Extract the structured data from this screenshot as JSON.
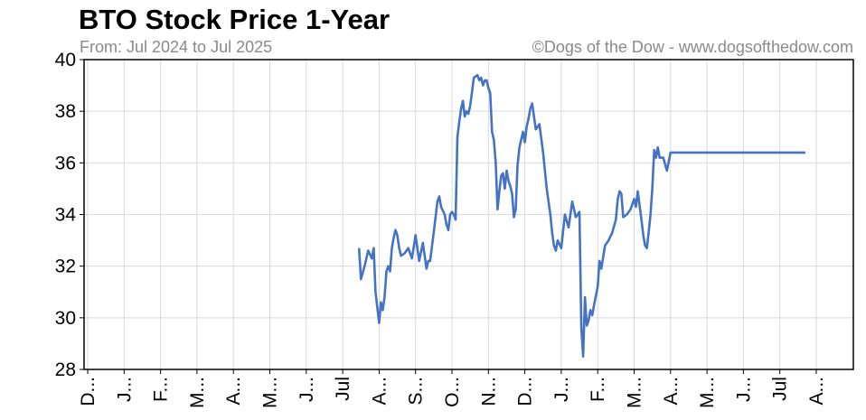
{
  "chart_data": {
    "type": "line",
    "title": "BTO Stock Price 1-Year",
    "subtitle": "From: Jul 2024 to Jul 2025",
    "credit": "©Dogs of the Dow - www.dogsofthedow.com",
    "xlabel": "",
    "ylabel": "",
    "ylim": [
      28,
      40
    ],
    "yticks": [
      28,
      30,
      32,
      34,
      36,
      38,
      40
    ],
    "xtick_labels": [
      "D...",
      "J...",
      "F...",
      "M...",
      "A...",
      "M...",
      "J...",
      "Jul",
      "A...",
      "S...",
      "O...",
      "N...",
      "D...",
      "J...",
      "F...",
      "M...",
      "A...",
      "M...",
      "J...",
      "Jul",
      "A..."
    ],
    "grid": true,
    "legend": "none",
    "line_color": "#4472c4",
    "series": [
      {
        "name": "",
        "x": [
          7.45,
          7.5,
          7.6,
          7.7,
          7.8,
          7.85,
          7.9,
          7.95,
          8.0,
          8.05,
          8.1,
          8.15,
          8.2,
          8.25,
          8.3,
          8.35,
          8.4,
          8.45,
          8.5,
          8.55,
          8.6,
          8.7,
          8.8,
          8.9,
          9.0,
          9.1,
          9.2,
          9.3,
          9.35,
          9.4,
          9.5,
          9.6,
          9.65,
          9.7,
          9.8,
          9.85,
          9.9,
          9.95,
          10.0,
          10.05,
          10.1,
          10.15,
          10.2,
          10.25,
          10.3,
          10.35,
          10.4,
          10.45,
          10.5,
          10.6,
          10.7,
          10.75,
          10.8,
          10.85,
          10.9,
          10.95,
          11.0,
          11.05,
          11.1,
          11.15,
          11.2,
          11.25,
          11.3,
          11.35,
          11.4,
          11.45,
          11.5,
          11.55,
          11.6,
          11.65,
          11.7,
          11.75,
          11.8,
          11.85,
          11.9,
          11.95,
          12.0,
          12.05,
          12.1,
          12.15,
          12.2,
          12.3,
          12.4,
          12.5,
          12.6,
          12.7,
          12.75,
          12.8,
          12.85,
          12.9,
          13.0,
          13.1,
          13.2,
          13.3,
          13.4,
          13.5,
          13.55,
          13.6,
          13.65,
          13.7,
          13.75,
          13.8,
          13.85,
          13.9,
          14.0,
          14.05,
          14.1,
          14.2,
          14.3,
          14.4,
          14.5,
          14.55,
          14.6,
          14.65,
          14.7,
          14.8,
          14.9,
          15.0,
          15.05,
          15.1,
          15.2,
          15.25,
          15.3,
          15.35,
          15.4,
          15.45,
          15.5,
          15.55,
          15.6,
          15.65,
          15.7,
          15.8,
          15.9,
          16.0,
          16.05,
          16.1,
          16.15,
          16.2,
          16.25,
          16.3,
          16.35,
          16.4,
          16.45,
          16.5,
          16.6,
          16.7,
          16.8,
          16.85,
          16.9,
          17.0,
          17.05,
          17.1,
          17.2,
          17.3,
          17.4,
          17.5,
          17.6,
          17.7,
          17.8,
          17.9,
          18.0,
          18.05,
          18.1,
          18.2,
          18.3,
          18.4,
          18.5,
          18.6,
          18.7,
          18.8,
          18.9,
          19.0,
          19.05,
          19.1,
          19.2,
          19.3,
          19.35,
          19.4,
          19.45,
          19.5,
          19.6,
          19.7
        ],
        "values": [
          32.7,
          31.5,
          32.0,
          32.6,
          32.3,
          32.7,
          31.0,
          30.4,
          29.8,
          30.6,
          30.3,
          30.8,
          31.8,
          32.0,
          31.8,
          32.7,
          33.1,
          33.4,
          33.2,
          32.7,
          32.4,
          32.5,
          32.7,
          32.3,
          33.2,
          32.2,
          32.9,
          31.9,
          32.2,
          32.2,
          33.3,
          34.5,
          34.7,
          34.3,
          34.0,
          33.6,
          33.4,
          34.0,
          34.1,
          34.0,
          33.8,
          37.0,
          37.6,
          38.1,
          38.4,
          37.8,
          38.0,
          37.9,
          38.2,
          39.3,
          39.4,
          39.2,
          39.3,
          39.0,
          39.2,
          39.2,
          38.9,
          38.7,
          37.2,
          36.9,
          36.0,
          34.2,
          34.9,
          35.5,
          35.6,
          35.0,
          35.7,
          35.3,
          35.1,
          34.8,
          33.9,
          34.2,
          35.9,
          36.6,
          36.9,
          37.2,
          36.8,
          37.4,
          37.7,
          38.1,
          38.3,
          37.3,
          37.5,
          36.4,
          35.0,
          34.0,
          33.3,
          32.8,
          32.6,
          33.0,
          32.7,
          34.0,
          33.5,
          34.5,
          33.9,
          34.1,
          29.6,
          28.5,
          30.8,
          29.7,
          29.9,
          30.3,
          30.1,
          30.5,
          31.2,
          32.2,
          31.9,
          32.8,
          33.0,
          33.3,
          33.8,
          34.6,
          34.9,
          34.8,
          33.9,
          34.0,
          34.2,
          34.6,
          34.3,
          34.9,
          33.8,
          33.2,
          32.8,
          32.7,
          33.3,
          34.0,
          35.0,
          36.5,
          36.2,
          36.6,
          36.2,
          36.2,
          35.7,
          36.4,
          36.4,
          36.4,
          36.4,
          36.4,
          36.4,
          36.4,
          36.4,
          36.4,
          36.4,
          36.4,
          36.4,
          36.4,
          36.4,
          36.4,
          36.4,
          36.4,
          36.4,
          36.4,
          36.4,
          36.4,
          36.4,
          36.4,
          36.4,
          36.4,
          36.4,
          36.4,
          36.4,
          36.4,
          36.4,
          36.4,
          36.4,
          36.4,
          36.4,
          36.4,
          36.4,
          36.4,
          36.4,
          36.4,
          36.4,
          36.4,
          36.4,
          36.4,
          36.4,
          36.4,
          36.4,
          36.4,
          36.4,
          36.4
        ]
      }
    ]
  }
}
